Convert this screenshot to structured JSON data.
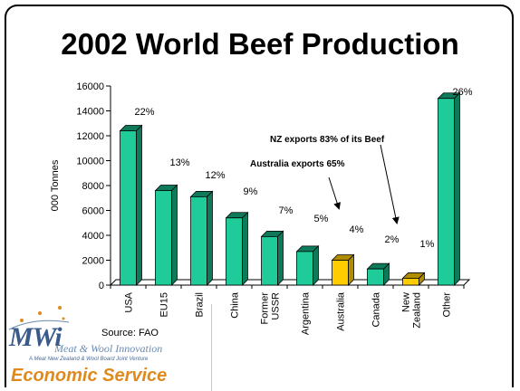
{
  "slide": {
    "source": "Source: FAO",
    "logo": {
      "mark": "MWi",
      "name": "Meat & Wool Innovation",
      "tagline": "A Meat New Zealand & Wool Board Joint Venture",
      "service": "Economic Service",
      "accent_color": "#e08a1e",
      "mark_color": "#3a5a8a"
    }
  },
  "chart_data": {
    "type": "bar",
    "title": "2002 World Beef Production",
    "ylabel": "000 Tonnes",
    "xlabel": "",
    "ylim": [
      0,
      16000
    ],
    "yticks": [
      "0",
      "2000",
      "4000",
      "6000",
      "8000",
      "10000",
      "12000",
      "14000",
      "16000"
    ],
    "categories": [
      "USA",
      "EU15",
      "Brazil",
      "China",
      "Former USSR",
      "Argentina",
      "Australia",
      "Canada",
      "New Zealand",
      "Other"
    ],
    "values": [
      12400,
      7600,
      7100,
      5400,
      3900,
      2700,
      2000,
      1300,
      550,
      15000
    ],
    "percent_labels": [
      "22%",
      "13%",
      "12%",
      "9%",
      "7%",
      "5%",
      "4%",
      "2%",
      "1%",
      "26%"
    ],
    "colors": {
      "default": "#1fcc99",
      "highlight": "#ffcc00",
      "side_default": "#0f7a5a",
      "side_highlight": "#b08c00"
    },
    "highlighted": [
      "Australia",
      "New Zealand"
    ],
    "annotations": [
      {
        "text": "NZ exports 83% of  its Beef",
        "points_to": "New Zealand"
      },
      {
        "text": "Australia exports 65%",
        "points_to": "Australia"
      }
    ],
    "grid": false,
    "legend": "none"
  }
}
